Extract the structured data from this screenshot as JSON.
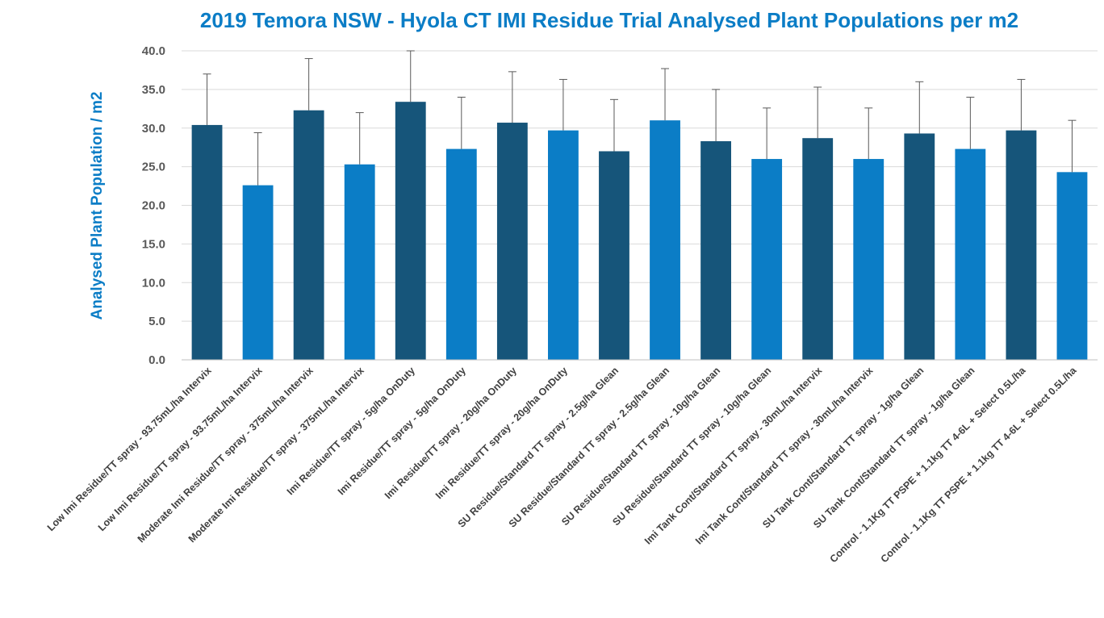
{
  "chart_data": {
    "type": "bar",
    "title": "2019 Temora NSW - Hyola CT IMI Residue Trial Analysed Plant Populations per m2",
    "xlabel": "",
    "ylabel": "Analysed Plant Population / m2",
    "ylim": [
      0,
      40
    ],
    "yticks": [
      "0.0",
      "5.0",
      "10.0",
      "15.0",
      "20.0",
      "25.0",
      "30.0",
      "35.0",
      "40.0"
    ],
    "ytick_values": [
      0,
      5,
      10,
      15,
      20,
      25,
      30,
      35,
      40
    ],
    "grid": true,
    "legend": "none",
    "categories": [
      "Low Imi Residue/TT spray - 93.75mL/ha Intervix",
      "Low Imi Residue/TT spray - 93.75mL/ha Intervix",
      "Moderate Imi Residue/TT spray - 375mL/ha Intervix",
      "Moderate Imi Residue/TT spray - 375mL/ha Intervix",
      "Imi Residue/TT spray - 5g/ha OnDuty",
      "Imi Residue/TT spray - 5g/ha OnDuty",
      "Imi Residue/TT spray - 20g/ha OnDuty",
      "Imi Residue/TT spray - 20g/ha OnDuty",
      "SU Residue/Standard TT spray - 2.5g/ha Glean",
      "SU Residue/Standard TT spray - 2.5g/ha Glean",
      "SU Residue/Standard TT spray - 10g/ha Glean",
      "SU Residue/Standard TT spray - 10g/ha Glean",
      "Imi Tank Cont/Standard TT spray - 30mL/ha Intervix",
      "Imi Tank Cont/Standard TT spray - 30mL/ha Intervix",
      "SU Tank Cont/Standard TT spray - 1g/ha Glean",
      "SU Tank Cont/Standard TT spray - 1g/ha Glean",
      "Control - 1.1Kg TT PSPE + 1.1kg TT 4-6L + Select 0.5L/ha",
      "Control - 1.1Kg TT PSPE + 1.1kg TT 4-6L + Select 0.5L/ha"
    ],
    "values": [
      30.4,
      22.6,
      32.3,
      25.3,
      33.4,
      27.3,
      30.7,
      29.7,
      27.0,
      31.0,
      28.3,
      26.0,
      28.7,
      26.0,
      29.3,
      27.3,
      29.7,
      24.3
    ],
    "error_upper": [
      37.0,
      29.4,
      39.0,
      32.0,
      40.0,
      34.0,
      37.3,
      36.3,
      33.7,
      37.7,
      35.0,
      32.6,
      35.3,
      32.6,
      36.0,
      34.0,
      36.3,
      31.0
    ],
    "bar_colors": [
      "#16557a",
      "#0b7dc6",
      "#16557a",
      "#0b7dc6",
      "#16557a",
      "#0b7dc6",
      "#16557a",
      "#0b7dc6",
      "#16557a",
      "#0b7dc6",
      "#16557a",
      "#0b7dc6",
      "#16557a",
      "#0b7dc6",
      "#16557a",
      "#0b7dc6",
      "#16557a",
      "#0b7dc6"
    ]
  },
  "colors": {
    "title": "#0b7dc6",
    "ylabel": "#0b7dc6",
    "grid": "#d9d9d9",
    "axis": "#bfbfbf",
    "error_bar": "#595959",
    "dark_bar": "#16557a",
    "light_bar": "#0b7dc6"
  }
}
